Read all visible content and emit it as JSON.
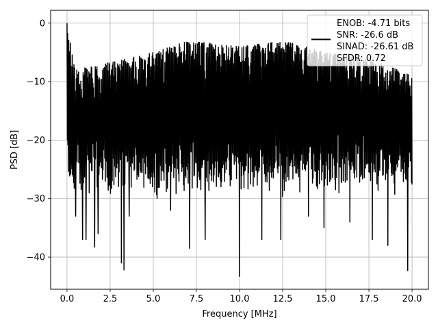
{
  "chart_data": {
    "type": "line",
    "xlabel": "Frequency [MHz]",
    "ylabel": "PSD [dB]",
    "xlim": [
      -0.95,
      20.95
    ],
    "ylim": [
      -45.5,
      2.2
    ],
    "xticks": [
      0.0,
      2.5,
      5.0,
      7.5,
      10.0,
      12.5,
      15.0,
      17.5,
      20.0
    ],
    "xtick_labels": [
      "0.0",
      "2.5",
      "5.0",
      "7.5",
      "10.0",
      "12.5",
      "15.0",
      "17.5",
      "20.0"
    ],
    "yticks": [
      0,
      -10,
      -20,
      -30,
      -40
    ],
    "ytick_labels": [
      "0",
      "−10",
      "−20",
      "−30",
      "−40"
    ],
    "grid": true,
    "legend_position": "top-right",
    "series": [
      {
        "name": "ENOB: -4.71 bits",
        "color": "#000000",
        "x_range": [
          0,
          20
        ],
        "n_points": 1200,
        "upper_envelope_approx": [
          [
            0,
            0
          ],
          [
            0.5,
            -8
          ],
          [
            2,
            -7
          ],
          [
            5,
            -5
          ],
          [
            7,
            -3
          ],
          [
            10,
            -4
          ],
          [
            12.5,
            -3
          ],
          [
            15,
            -5
          ],
          [
            17.5,
            -6
          ],
          [
            20,
            -9
          ]
        ],
        "typical_floor_approx": -27,
        "notable_minima": [
          [
            0.5,
            -33
          ],
          [
            0.9,
            -37
          ],
          [
            1.1,
            -37
          ],
          [
            1.6,
            -38.3
          ],
          [
            1.8,
            -36
          ],
          [
            3.15,
            -41
          ],
          [
            3.3,
            -42.2
          ],
          [
            3.6,
            -33
          ],
          [
            6.0,
            -32
          ],
          [
            7.1,
            -38.5
          ],
          [
            8.0,
            -37
          ],
          [
            10.0,
            -43.3
          ],
          [
            11.3,
            -37
          ],
          [
            12.4,
            -37
          ],
          [
            14.0,
            -33
          ],
          [
            14.9,
            -35
          ],
          [
            16.4,
            -34
          ],
          [
            17.7,
            -37
          ],
          [
            18.6,
            -38
          ],
          [
            19.75,
            -42.3
          ]
        ]
      }
    ],
    "legend": [
      "ENOB: -4.71 bits",
      "SNR: -26.6 dB",
      "SINAD: -26.61 dB",
      "SFDR: 0.72"
    ]
  }
}
